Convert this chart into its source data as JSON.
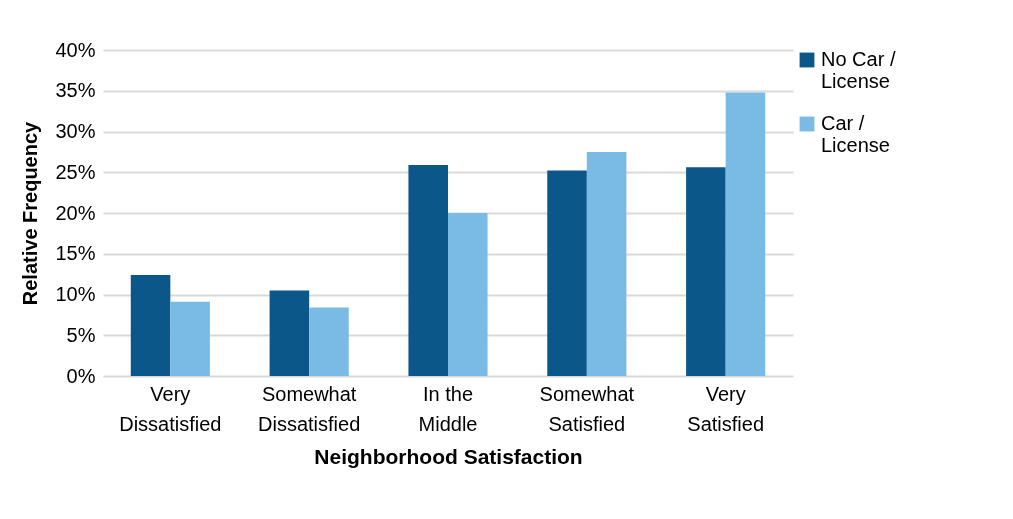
{
  "chart_data": {
    "type": "bar",
    "xlabel": "Neighborhood Satisfaction",
    "ylabel": "Relative Frequency",
    "categories": [
      "Very Dissatisfied",
      "Somewhat Dissatisfied",
      "In the Middle",
      "Somewhat Satisfied",
      "Very Satisfied"
    ],
    "series": [
      {
        "name": "No Car / License",
        "color": "#0b5789",
        "values": [
          12.4,
          10.5,
          25.9,
          25.2,
          25.6
        ]
      },
      {
        "name": "Car / License",
        "color": "#7abbe5",
        "values": [
          9.1,
          8.4,
          20.0,
          27.5,
          34.8
        ]
      }
    ],
    "ylim": [
      0,
      40
    ],
    "yticks": [
      {
        "value": 0,
        "label": "0%"
      },
      {
        "value": 5,
        "label": "5%"
      },
      {
        "value": 10,
        "label": "10%"
      },
      {
        "value": 15,
        "label": "15%"
      },
      {
        "value": 20,
        "label": "20%"
      },
      {
        "value": 25,
        "label": "25%"
      },
      {
        "value": 30,
        "label": "30%"
      },
      {
        "value": 35,
        "label": "35%"
      },
      {
        "value": 40,
        "label": "40%"
      }
    ],
    "grid": "y",
    "legend": "right"
  }
}
